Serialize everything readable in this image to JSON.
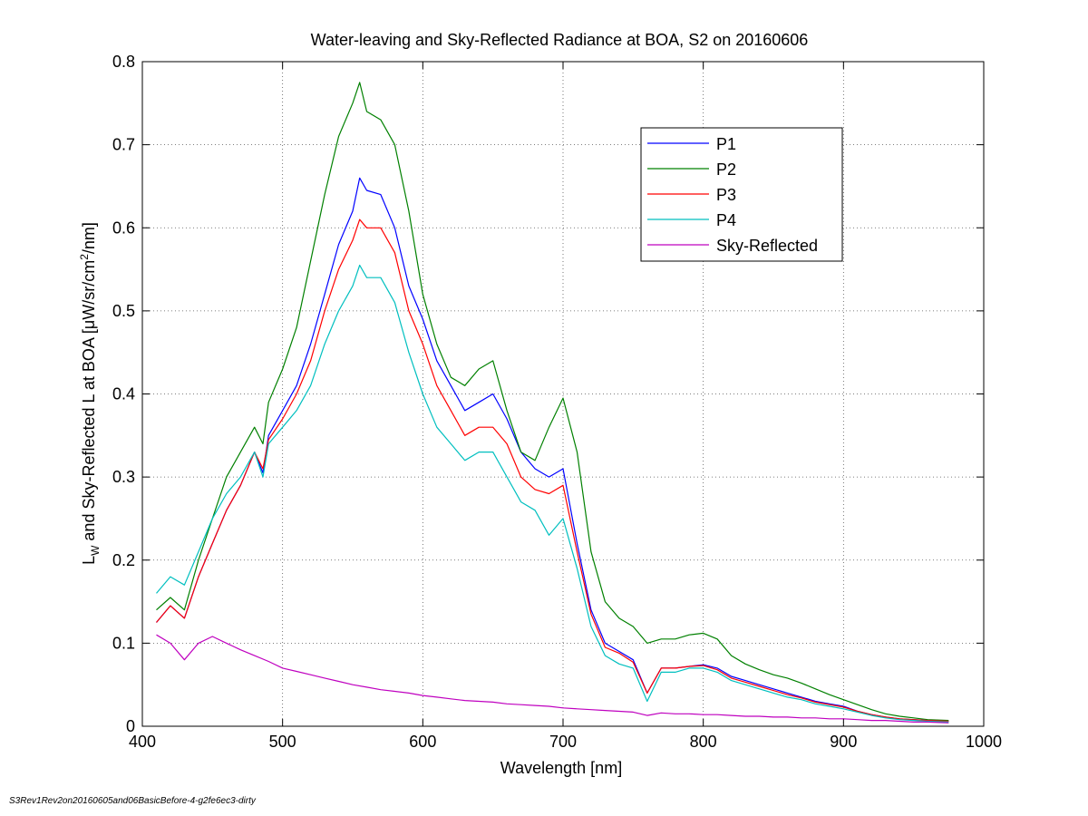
{
  "chart_data": {
    "type": "line",
    "title": "Water-leaving and Sky-Reflected Radiance at BOA, S2 on 20160606",
    "xlabel": "Wavelength [nm]",
    "ylabel_parts": {
      "main": "L",
      "sub": "W",
      "mid": " and Sky-Reflected L at BOA [μW/sr/cm",
      "sup": "2",
      "end": "/nm]"
    },
    "xlim": [
      400,
      1000
    ],
    "ylim": [
      0,
      0.8
    ],
    "xticks": [
      400,
      500,
      600,
      700,
      800,
      900,
      1000
    ],
    "xtick_labels": [
      "400",
      "500",
      "600",
      "700",
      "800",
      "900",
      "1000"
    ],
    "yticks": [
      0,
      0.1,
      0.2,
      0.3,
      0.4,
      0.5,
      0.6,
      0.7,
      0.8
    ],
    "ytick_labels": [
      "0",
      "0.1",
      "0.2",
      "0.3",
      "0.4",
      "0.5",
      "0.6",
      "0.7",
      "0.8"
    ],
    "grid": true,
    "legend_position": "top-right",
    "series": [
      {
        "name": "P1",
        "color": "#0000ff",
        "x": [
          410,
          420,
          430,
          440,
          450,
          460,
          470,
          480,
          486,
          490,
          500,
          510,
          520,
          530,
          540,
          550,
          555,
          560,
          570,
          580,
          590,
          600,
          610,
          620,
          630,
          640,
          650,
          660,
          670,
          680,
          690,
          700,
          710,
          720,
          730,
          740,
          750,
          760,
          770,
          780,
          790,
          800,
          810,
          820,
          830,
          840,
          850,
          860,
          870,
          880,
          890,
          900,
          910,
          920,
          930,
          940,
          950,
          960,
          975
        ],
        "y": [
          0.125,
          0.145,
          0.13,
          0.18,
          0.22,
          0.26,
          0.29,
          0.33,
          0.305,
          0.35,
          0.38,
          0.41,
          0.46,
          0.52,
          0.58,
          0.62,
          0.66,
          0.645,
          0.64,
          0.6,
          0.53,
          0.49,
          0.44,
          0.41,
          0.38,
          0.39,
          0.4,
          0.37,
          0.33,
          0.31,
          0.3,
          0.31,
          0.22,
          0.14,
          0.1,
          0.09,
          0.08,
          0.04,
          0.07,
          0.07,
          0.072,
          0.074,
          0.07,
          0.06,
          0.055,
          0.05,
          0.045,
          0.04,
          0.035,
          0.03,
          0.027,
          0.024,
          0.018,
          0.014,
          0.011,
          0.009,
          0.008,
          0.007,
          0.006
        ]
      },
      {
        "name": "P2",
        "color": "#008000",
        "x": [
          410,
          420,
          430,
          440,
          450,
          460,
          470,
          480,
          486,
          490,
          500,
          510,
          520,
          530,
          540,
          550,
          555,
          560,
          570,
          580,
          590,
          600,
          610,
          620,
          630,
          640,
          650,
          660,
          670,
          680,
          690,
          700,
          710,
          720,
          730,
          740,
          750,
          760,
          770,
          780,
          790,
          800,
          810,
          820,
          830,
          840,
          850,
          860,
          870,
          880,
          890,
          900,
          910,
          920,
          930,
          940,
          950,
          960,
          975
        ],
        "y": [
          0.14,
          0.155,
          0.14,
          0.2,
          0.25,
          0.3,
          0.33,
          0.36,
          0.34,
          0.39,
          0.43,
          0.48,
          0.56,
          0.64,
          0.71,
          0.75,
          0.775,
          0.74,
          0.73,
          0.7,
          0.62,
          0.52,
          0.46,
          0.42,
          0.41,
          0.43,
          0.44,
          0.38,
          0.33,
          0.32,
          0.36,
          0.395,
          0.33,
          0.21,
          0.15,
          0.13,
          0.12,
          0.1,
          0.105,
          0.105,
          0.11,
          0.112,
          0.105,
          0.085,
          0.075,
          0.068,
          0.062,
          0.058,
          0.052,
          0.045,
          0.038,
          0.032,
          0.026,
          0.02,
          0.015,
          0.012,
          0.01,
          0.008,
          0.007
        ]
      },
      {
        "name": "P3",
        "color": "#ff0000",
        "x": [
          410,
          420,
          430,
          440,
          450,
          460,
          470,
          480,
          486,
          490,
          500,
          510,
          520,
          530,
          540,
          550,
          555,
          560,
          570,
          580,
          590,
          600,
          610,
          620,
          630,
          640,
          650,
          660,
          670,
          680,
          690,
          700,
          710,
          720,
          730,
          740,
          750,
          760,
          770,
          780,
          790,
          800,
          810,
          820,
          830,
          840,
          850,
          860,
          870,
          880,
          890,
          900,
          910,
          920,
          930,
          940,
          950,
          960,
          975
        ],
        "y": [
          0.125,
          0.145,
          0.13,
          0.18,
          0.22,
          0.26,
          0.29,
          0.33,
          0.31,
          0.345,
          0.37,
          0.4,
          0.44,
          0.5,
          0.55,
          0.585,
          0.61,
          0.6,
          0.6,
          0.57,
          0.5,
          0.46,
          0.41,
          0.38,
          0.35,
          0.36,
          0.36,
          0.34,
          0.3,
          0.285,
          0.28,
          0.29,
          0.21,
          0.135,
          0.095,
          0.088,
          0.077,
          0.04,
          0.07,
          0.07,
          0.072,
          0.073,
          0.068,
          0.058,
          0.053,
          0.048,
          0.043,
          0.038,
          0.034,
          0.029,
          0.026,
          0.023,
          0.018,
          0.014,
          0.011,
          0.009,
          0.008,
          0.007,
          0.006
        ]
      },
      {
        "name": "P4",
        "color": "#00bfbf",
        "x": [
          410,
          420,
          430,
          440,
          450,
          460,
          470,
          480,
          486,
          490,
          500,
          510,
          520,
          530,
          540,
          550,
          555,
          560,
          570,
          580,
          590,
          600,
          610,
          620,
          630,
          640,
          650,
          660,
          670,
          680,
          690,
          700,
          710,
          720,
          730,
          740,
          750,
          760,
          770,
          780,
          790,
          800,
          810,
          820,
          830,
          840,
          850,
          860,
          870,
          880,
          890,
          900,
          910,
          920,
          930,
          940,
          950,
          960,
          975
        ],
        "y": [
          0.16,
          0.18,
          0.17,
          0.21,
          0.25,
          0.28,
          0.3,
          0.33,
          0.3,
          0.34,
          0.36,
          0.38,
          0.41,
          0.46,
          0.5,
          0.53,
          0.555,
          0.54,
          0.54,
          0.51,
          0.45,
          0.4,
          0.36,
          0.34,
          0.32,
          0.33,
          0.33,
          0.3,
          0.27,
          0.26,
          0.23,
          0.25,
          0.19,
          0.12,
          0.085,
          0.075,
          0.07,
          0.03,
          0.065,
          0.065,
          0.07,
          0.07,
          0.065,
          0.055,
          0.05,
          0.045,
          0.04,
          0.035,
          0.032,
          0.027,
          0.024,
          0.021,
          0.017,
          0.013,
          0.01,
          0.008,
          0.007,
          0.006,
          0.005
        ]
      },
      {
        "name": "Sky-Reflected",
        "color": "#bf00bf",
        "x": [
          410,
          420,
          430,
          440,
          450,
          460,
          470,
          480,
          490,
          500,
          510,
          520,
          530,
          540,
          550,
          560,
          570,
          580,
          590,
          600,
          610,
          620,
          630,
          640,
          650,
          660,
          670,
          680,
          690,
          700,
          710,
          720,
          730,
          740,
          750,
          760,
          770,
          780,
          790,
          800,
          810,
          820,
          830,
          840,
          850,
          860,
          870,
          880,
          890,
          900,
          910,
          920,
          930,
          940,
          950,
          960,
          975
        ],
        "y": [
          0.11,
          0.1,
          0.08,
          0.1,
          0.108,
          0.1,
          0.092,
          0.085,
          0.078,
          0.07,
          0.066,
          0.062,
          0.058,
          0.054,
          0.05,
          0.047,
          0.044,
          0.042,
          0.04,
          0.037,
          0.035,
          0.033,
          0.031,
          0.03,
          0.029,
          0.027,
          0.026,
          0.025,
          0.024,
          0.022,
          0.021,
          0.02,
          0.019,
          0.018,
          0.017,
          0.013,
          0.016,
          0.015,
          0.015,
          0.014,
          0.014,
          0.013,
          0.012,
          0.012,
          0.011,
          0.011,
          0.01,
          0.01,
          0.009,
          0.009,
          0.008,
          0.007,
          0.007,
          0.006,
          0.005,
          0.005,
          0.004
        ]
      }
    ]
  },
  "footnote": "S3Rev1Rev2on20160605and06BasicBefore-4-g2fe6ec3-dirty"
}
